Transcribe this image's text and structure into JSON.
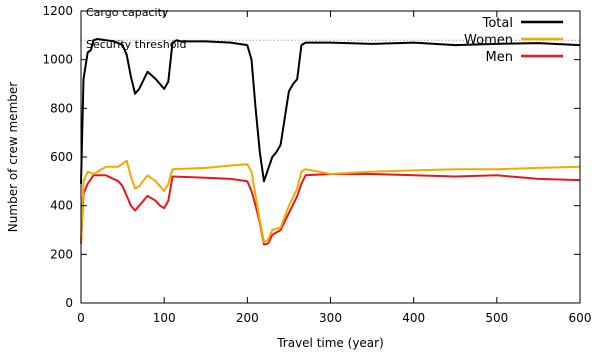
{
  "chart_data": {
    "type": "line",
    "title": "",
    "xlabel": "Travel time (year)",
    "ylabel": "Number of crew member",
    "xlim": [
      0,
      600
    ],
    "ylim": [
      0,
      1200
    ],
    "xticks": [
      0,
      100,
      200,
      300,
      400,
      500,
      600
    ],
    "yticks": [
      0,
      200,
      400,
      600,
      800,
      1000,
      1200
    ],
    "grid": false,
    "legend_position": "top-right",
    "reference_lines": [
      {
        "label": "Cargo capacity",
        "y": 1200
      },
      {
        "label": "Security threshold",
        "y": 1080
      }
    ],
    "series": [
      {
        "name": "Total",
        "color": "#000000",
        "x": [
          0,
          3,
          8,
          12,
          15,
          20,
          30,
          40,
          50,
          55,
          60,
          65,
          70,
          80,
          90,
          95,
          100,
          105,
          110,
          115,
          120,
          150,
          180,
          200,
          205,
          210,
          215,
          220,
          225,
          230,
          235,
          240,
          250,
          255,
          260,
          265,
          270,
          300,
          350,
          400,
          450,
          500,
          550,
          600
        ],
        "y": [
          490,
          920,
          1030,
          1040,
          1080,
          1085,
          1080,
          1075,
          1060,
          1020,
          930,
          860,
          880,
          950,
          920,
          900,
          880,
          910,
          1070,
          1080,
          1075,
          1075,
          1070,
          1060,
          1000,
          800,
          620,
          500,
          550,
          600,
          620,
          650,
          870,
          900,
          920,
          1060,
          1070,
          1070,
          1065,
          1070,
          1060,
          1065,
          1068,
          1060
        ]
      },
      {
        "name": "Women",
        "color": "#f5a800",
        "x": [
          0,
          3,
          8,
          15,
          30,
          45,
          55,
          60,
          65,
          70,
          80,
          90,
          95,
          100,
          105,
          110,
          150,
          180,
          200,
          205,
          210,
          215,
          220,
          225,
          230,
          240,
          250,
          260,
          265,
          270,
          300,
          350,
          400,
          450,
          500,
          550,
          600
        ],
        "y": [
          250,
          500,
          540,
          530,
          560,
          560,
          585,
          520,
          470,
          480,
          525,
          500,
          480,
          460,
          490,
          550,
          555,
          565,
          570,
          540,
          440,
          340,
          250,
          260,
          300,
          310,
          400,
          470,
          540,
          550,
          530,
          540,
          545,
          550,
          550,
          555,
          560
        ]
      },
      {
        "name": "Men",
        "color": "#e8171f",
        "x": [
          0,
          3,
          8,
          15,
          30,
          45,
          50,
          55,
          60,
          65,
          70,
          80,
          90,
          95,
          100,
          105,
          110,
          150,
          180,
          200,
          205,
          210,
          215,
          220,
          225,
          230,
          240,
          250,
          260,
          265,
          270,
          300,
          350,
          400,
          450,
          500,
          550,
          600
        ],
        "y": [
          245,
          450,
          490,
          525,
          525,
          500,
          480,
          440,
          400,
          380,
          400,
          440,
          420,
          400,
          390,
          420,
          520,
          515,
          510,
          500,
          460,
          400,
          330,
          240,
          245,
          280,
          300,
          370,
          440,
          490,
          525,
          530,
          530,
          525,
          520,
          525,
          510,
          505
        ]
      }
    ]
  }
}
